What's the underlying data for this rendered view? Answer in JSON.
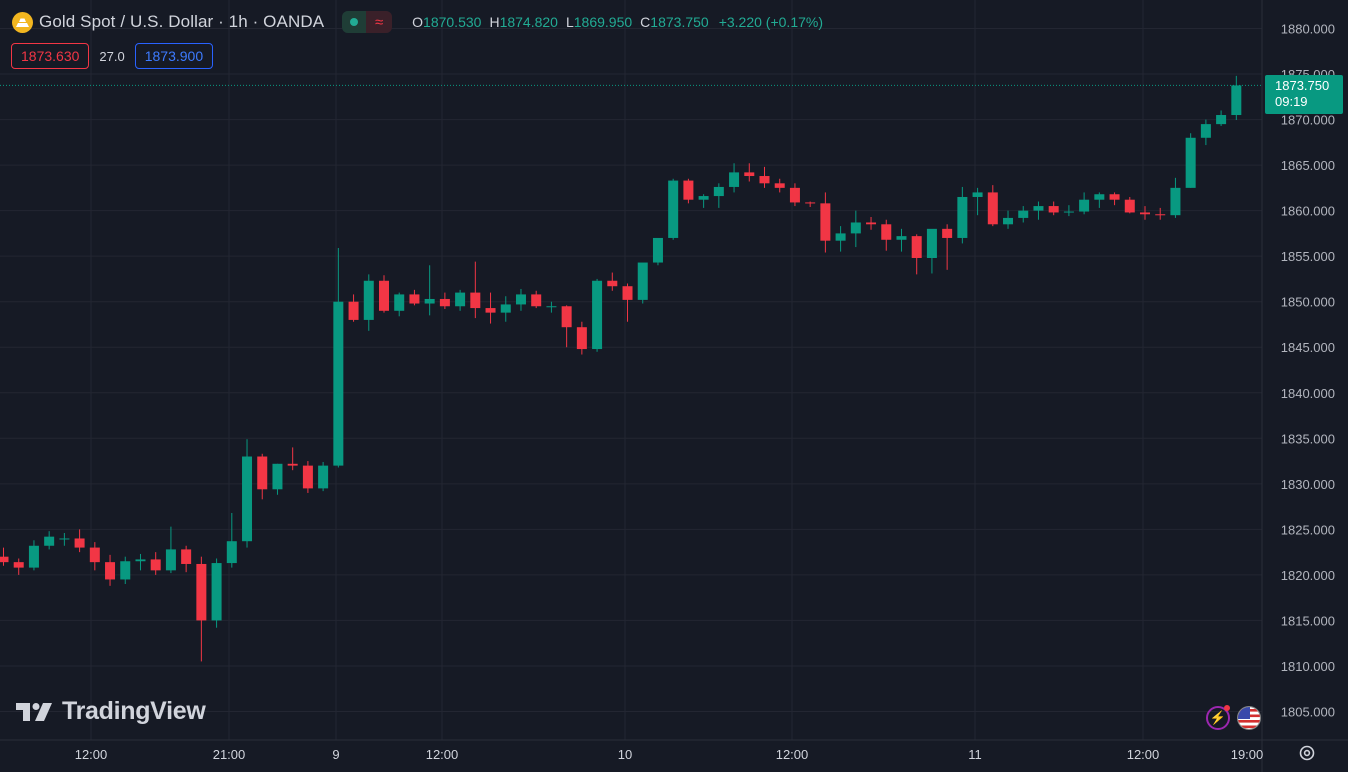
{
  "header": {
    "symbol_title": "Gold Spot / U.S. Dollar · 1h · OANDA",
    "ohlc": {
      "o_label": "O",
      "o": "1870.530",
      "h_label": "H",
      "h": "1874.820",
      "l_label": "L",
      "l": "1869.950",
      "c_label": "C",
      "c": "1873.750",
      "change": "+3.220 (+0.17%)"
    }
  },
  "trade": {
    "sell_price": "1873.630",
    "spread": "27.0",
    "buy_price": "1873.900"
  },
  "last_price": {
    "value": "1873.750",
    "countdown": "09:19"
  },
  "branding": {
    "name": "TradingView"
  },
  "colors": {
    "up": "#089981",
    "down": "#f23645",
    "background": "#161a25",
    "grid": "#232632"
  },
  "icons": [
    "gold-coin-icon",
    "market-status-dot-icon",
    "wave-icon",
    "tradingview-logo-icon",
    "bolt-icon",
    "us-flag-icon",
    "settings-gear-icon"
  ],
  "chart_data": {
    "type": "candlestick",
    "title": "Gold Spot / U.S. Dollar · 1h · OANDA",
    "y_ticks": [
      "1805.000",
      "1810.000",
      "1815.000",
      "1820.000",
      "1825.000",
      "1830.000",
      "1835.000",
      "1840.000",
      "1845.000",
      "1850.000",
      "1855.000",
      "1860.000",
      "1865.000",
      "1870.000",
      "1875.000",
      "1880.000"
    ],
    "x_ticks": [
      "12:00",
      "21:00",
      "9",
      "12:00",
      "10",
      "12:00",
      "11",
      "12:00",
      "19:00"
    ],
    "ylim": [
      1802,
      1882
    ],
    "grid": true,
    "last_price": 1873.75,
    "candles": [
      [
        1822.0,
        1823.0,
        1821.0,
        1821.4
      ],
      [
        1821.4,
        1821.8,
        1820.0,
        1820.8
      ],
      [
        1820.8,
        1823.8,
        1820.5,
        1823.2
      ],
      [
        1823.2,
        1824.8,
        1822.8,
        1824.2
      ],
      [
        1824.0,
        1824.6,
        1823.2,
        1824.0
      ],
      [
        1824.0,
        1825.0,
        1822.5,
        1823.0
      ],
      [
        1823.0,
        1823.6,
        1820.5,
        1821.4
      ],
      [
        1821.4,
        1822.2,
        1818.8,
        1819.5
      ],
      [
        1819.5,
        1822.0,
        1819.0,
        1821.5
      ],
      [
        1821.5,
        1822.3,
        1820.5,
        1821.7
      ],
      [
        1821.7,
        1822.5,
        1820.0,
        1820.5
      ],
      [
        1820.5,
        1825.3,
        1820.2,
        1822.8
      ],
      [
        1822.8,
        1823.2,
        1820.3,
        1821.2
      ],
      [
        1821.2,
        1822.0,
        1810.5,
        1815.0
      ],
      [
        1815.0,
        1821.8,
        1814.2,
        1821.3
      ],
      [
        1821.3,
        1826.8,
        1820.8,
        1823.7
      ],
      [
        1823.7,
        1834.9,
        1823.0,
        1833.0
      ],
      [
        1833.0,
        1833.3,
        1828.3,
        1829.4
      ],
      [
        1829.4,
        1832.2,
        1828.8,
        1832.2
      ],
      [
        1832.2,
        1834.0,
        1831.5,
        1832.0
      ],
      [
        1832.0,
        1832.5,
        1829.0,
        1829.5
      ],
      [
        1829.5,
        1832.4,
        1829.2,
        1832.0
      ],
      [
        1832.0,
        1855.9,
        1831.8,
        1850.0
      ],
      [
        1850.0,
        1850.8,
        1847.8,
        1848.0
      ],
      [
        1848.0,
        1853.0,
        1846.8,
        1852.3
      ],
      [
        1852.3,
        1852.9,
        1848.8,
        1849.0
      ],
      [
        1849.0,
        1851.0,
        1848.4,
        1850.8
      ],
      [
        1850.8,
        1851.3,
        1849.6,
        1849.8
      ],
      [
        1849.8,
        1854.0,
        1848.5,
        1850.3
      ],
      [
        1850.3,
        1851.0,
        1849.2,
        1849.5
      ],
      [
        1849.5,
        1851.3,
        1849.0,
        1851.0
      ],
      [
        1851.0,
        1854.4,
        1848.2,
        1849.3
      ],
      [
        1849.3,
        1851.0,
        1847.6,
        1848.8
      ],
      [
        1848.8,
        1850.6,
        1847.8,
        1849.7
      ],
      [
        1849.7,
        1851.4,
        1849.0,
        1850.8
      ],
      [
        1850.8,
        1851.2,
        1849.3,
        1849.5
      ],
      [
        1849.5,
        1850.0,
        1848.8,
        1849.5
      ],
      [
        1849.5,
        1849.6,
        1845.0,
        1847.2
      ],
      [
        1847.2,
        1847.8,
        1844.2,
        1844.8
      ],
      [
        1844.8,
        1852.5,
        1844.5,
        1852.3
      ],
      [
        1852.3,
        1853.2,
        1851.2,
        1851.7
      ],
      [
        1851.7,
        1852.0,
        1847.8,
        1850.2
      ],
      [
        1850.2,
        1854.0,
        1849.8,
        1854.3
      ],
      [
        1854.3,
        1856.8,
        1854.0,
        1857.0
      ],
      [
        1857.0,
        1863.5,
        1856.8,
        1863.3
      ],
      [
        1863.3,
        1863.5,
        1860.8,
        1861.2
      ],
      [
        1861.2,
        1861.8,
        1860.3,
        1861.6
      ],
      [
        1861.6,
        1863.0,
        1860.3,
        1862.6
      ],
      [
        1862.6,
        1865.2,
        1862.0,
        1864.2
      ],
      [
        1864.2,
        1865.2,
        1863.2,
        1863.8
      ],
      [
        1863.8,
        1864.8,
        1862.5,
        1863.0
      ],
      [
        1863.0,
        1863.5,
        1862.0,
        1862.5
      ],
      [
        1862.5,
        1863.0,
        1860.5,
        1860.9
      ],
      [
        1860.9,
        1861.0,
        1860.4,
        1860.8
      ],
      [
        1860.8,
        1862.0,
        1855.4,
        1856.7
      ],
      [
        1856.7,
        1858.3,
        1855.5,
        1857.5
      ],
      [
        1857.5,
        1860.0,
        1856.0,
        1858.7
      ],
      [
        1858.7,
        1859.3,
        1857.9,
        1858.5
      ],
      [
        1858.5,
        1859.0,
        1855.6,
        1856.8
      ],
      [
        1856.8,
        1858.0,
        1855.5,
        1857.2
      ],
      [
        1857.2,
        1857.4,
        1853.0,
        1854.8
      ],
      [
        1854.8,
        1857.9,
        1853.1,
        1858.0
      ],
      [
        1858.0,
        1858.5,
        1853.5,
        1857.0
      ],
      [
        1857.0,
        1862.6,
        1856.4,
        1861.5
      ],
      [
        1861.5,
        1862.5,
        1859.5,
        1862.0
      ],
      [
        1862.0,
        1862.8,
        1858.3,
        1858.5
      ],
      [
        1858.5,
        1860.0,
        1858.0,
        1859.2
      ],
      [
        1859.2,
        1860.5,
        1858.7,
        1860.0
      ],
      [
        1860.0,
        1861.0,
        1859.0,
        1860.5
      ],
      [
        1860.5,
        1861.0,
        1859.5,
        1859.8
      ],
      [
        1859.8,
        1860.6,
        1859.4,
        1859.9
      ],
      [
        1859.9,
        1862.0,
        1859.6,
        1861.2
      ],
      [
        1861.2,
        1862.0,
        1860.3,
        1861.8
      ],
      [
        1861.8,
        1862.0,
        1860.6,
        1861.2
      ],
      [
        1861.2,
        1861.5,
        1859.7,
        1859.8
      ],
      [
        1859.8,
        1860.5,
        1859.0,
        1859.6
      ],
      [
        1859.6,
        1860.3,
        1859.0,
        1859.5
      ],
      [
        1859.5,
        1863.6,
        1859.2,
        1862.5
      ],
      [
        1862.5,
        1868.5,
        1862.5,
        1868.0
      ],
      [
        1868.0,
        1870.0,
        1867.2,
        1869.5
      ],
      [
        1869.5,
        1871.0,
        1869.3,
        1870.5
      ],
      [
        1870.5,
        1874.8,
        1869.95,
        1873.75
      ]
    ]
  }
}
